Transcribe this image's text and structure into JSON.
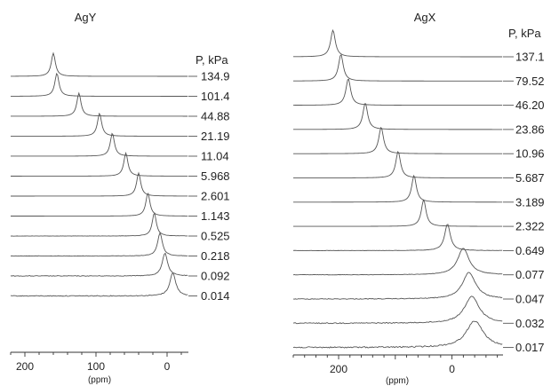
{
  "chart_data": [
    {
      "type": "line",
      "title": "AgY",
      "xlabel": "(ppm)",
      "header_label": "P, kPa",
      "x_ticks": [
        200,
        100,
        0
      ],
      "xlim": [
        220,
        -30
      ],
      "x_reversed": true,
      "series": [
        {
          "name": "134.9",
          "peak_ppm": 160,
          "width_ppm": 3.5,
          "noise": 0.0
        },
        {
          "name": "101.4",
          "peak_ppm": 155,
          "width_ppm": 3.5,
          "noise": 0.0
        },
        {
          "name": "44.88",
          "peak_ppm": 124,
          "width_ppm": 3.5,
          "noise": 0.0
        },
        {
          "name": "21.19",
          "peak_ppm": 95,
          "width_ppm": 3.5,
          "noise": 0.0
        },
        {
          "name": "11.04",
          "peak_ppm": 77,
          "width_ppm": 3.5,
          "noise": 0.0
        },
        {
          "name": "5.968",
          "peak_ppm": 58,
          "width_ppm": 3.5,
          "noise": 0.0
        },
        {
          "name": "2.601",
          "peak_ppm": 40,
          "width_ppm": 3.5,
          "noise": 0.0
        },
        {
          "name": "1.143",
          "peak_ppm": 27,
          "width_ppm": 3.5,
          "noise": 0.0
        },
        {
          "name": "0.525",
          "peak_ppm": 18,
          "width_ppm": 3.5,
          "noise": 0.05
        },
        {
          "name": "0.218",
          "peak_ppm": 10,
          "width_ppm": 4,
          "noise": 0.08
        },
        {
          "name": "0.092",
          "peak_ppm": 3,
          "width_ppm": 4.5,
          "noise": 0.12
        },
        {
          "name": "0.014",
          "peak_ppm": -8,
          "width_ppm": 5,
          "noise": 0.15
        }
      ]
    },
    {
      "type": "line",
      "title": "AgX",
      "xlabel": "(ppm)",
      "header_label": "P, kPa",
      "x_ticks": [
        200,
        0
      ],
      "xlim": [
        280,
        -90
      ],
      "x_reversed": true,
      "series": [
        {
          "name": "137.1",
          "peak_ppm": 210,
          "width_ppm": 5,
          "noise": 0.0
        },
        {
          "name": "79.52",
          "peak_ppm": 196,
          "width_ppm": 5,
          "noise": 0.0
        },
        {
          "name": "46.20",
          "peak_ppm": 183,
          "width_ppm": 5,
          "noise": 0.0
        },
        {
          "name": "23.86",
          "peak_ppm": 153,
          "width_ppm": 5,
          "noise": 0.0
        },
        {
          "name": "10.96",
          "peak_ppm": 125,
          "width_ppm": 5,
          "noise": 0.0
        },
        {
          "name": "5.687",
          "peak_ppm": 95,
          "width_ppm": 5,
          "noise": 0.0
        },
        {
          "name": "3.189",
          "peak_ppm": 67,
          "width_ppm": 5,
          "noise": 0.0
        },
        {
          "name": "2.322",
          "peak_ppm": 50,
          "width_ppm": 5,
          "noise": 0.0
        },
        {
          "name": "0.649",
          "peak_ppm": 8,
          "width_ppm": 6,
          "noise": 0.04
        },
        {
          "name": "0.077",
          "peak_ppm": -20,
          "width_ppm": 12,
          "noise": 0.06
        },
        {
          "name": "0.047",
          "peak_ppm": -30,
          "width_ppm": 14,
          "noise": 0.1
        },
        {
          "name": "0.032",
          "peak_ppm": -35,
          "width_ppm": 16,
          "noise": 0.14
        },
        {
          "name": "0.017",
          "peak_ppm": -40,
          "width_ppm": 18,
          "noise": 0.18
        }
      ]
    }
  ]
}
